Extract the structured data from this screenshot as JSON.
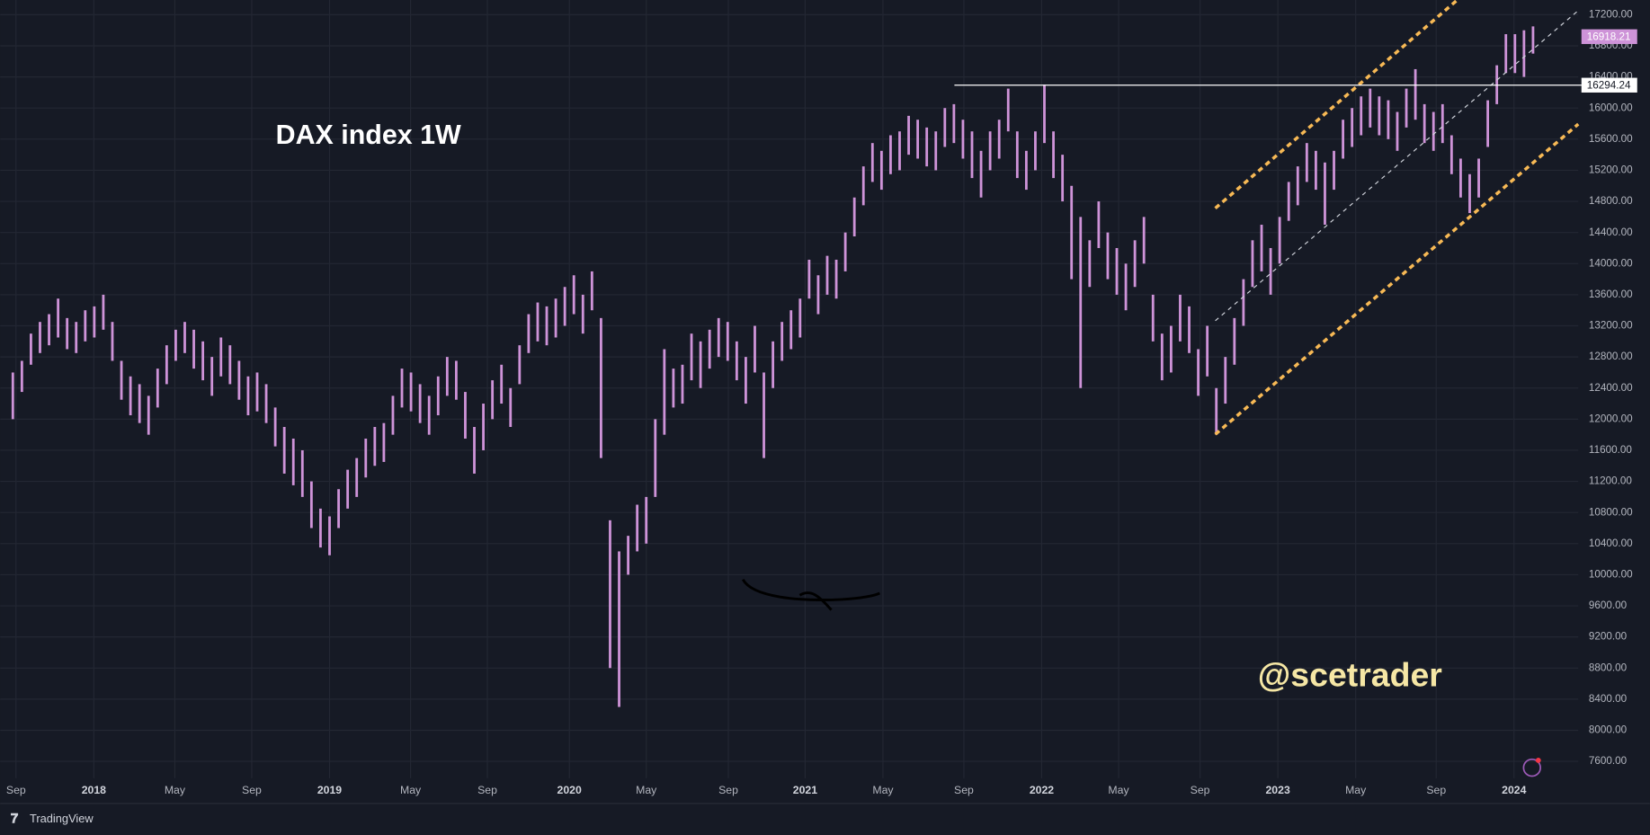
{
  "chart_data": {
    "type": "ohlc",
    "title": "DAX index 1W",
    "watermark": "@scetrader",
    "brand": "TradingView",
    "color": "#ce93d8",
    "low": [
      12000,
      12350,
      12700,
      12850,
      12950,
      13050,
      12900,
      12850,
      13000,
      13050,
      13150,
      12750,
      12250,
      12050,
      11950,
      11800,
      12150,
      12450,
      12750,
      12850,
      12650,
      12500,
      12300,
      12550,
      12450,
      12250,
      12050,
      12100,
      11950,
      11650,
      11300,
      11150,
      11000,
      10600,
      10350,
      10250,
      10600,
      10850,
      11000,
      11250,
      11400,
      11450,
      11800,
      12150,
      12100,
      11950,
      11800,
      12050,
      12300,
      12250,
      11750,
      11300,
      11600,
      12000,
      12200,
      11900,
      12450,
      12850,
      13000,
      12950,
      13050,
      13200,
      13350,
      13100,
      13400,
      11500,
      8800,
      8300,
      10000,
      10300,
      10400,
      11000,
      11800,
      12150,
      12200,
      12500,
      12400,
      12650,
      12800,
      12750,
      12500,
      12200,
      12600,
      11500,
      12400,
      12750,
      12900,
      13050,
      13550,
      13350,
      13600,
      13550,
      13900,
      14350,
      14750,
      15050,
      14950,
      15150,
      15200,
      15400,
      15350,
      15250,
      15200,
      15500,
      15550,
      15350,
      15100,
      14850,
      15200,
      15350,
      15700,
      15100,
      14950,
      15200,
      15550,
      15100,
      14800,
      13800,
      12400,
      13700,
      14200,
      13800,
      13600,
      13400,
      13700,
      14000,
      13000,
      12500,
      12600,
      13000,
      12850,
      12300,
      12550,
      11800,
      12200,
      12700,
      13200,
      13700,
      13900,
      13600,
      14000,
      14550,
      14750,
      15050,
      14950,
      14500,
      14950,
      15350,
      15500,
      15650,
      15750,
      15650,
      15600,
      15450,
      15750,
      15850,
      15550,
      15450,
      15550,
      15150,
      14850,
      14650,
      14850,
      15500,
      16050,
      16450,
      16450,
      16400,
      16700
    ],
    "high": [
      12600,
      12750,
      13100,
      13250,
      13350,
      13550,
      13300,
      13250,
      13400,
      13450,
      13600,
      13250,
      12750,
      12550,
      12450,
      12300,
      12650,
      12950,
      13150,
      13250,
      13150,
      13000,
      12800,
      13050,
      12950,
      12750,
      12550,
      12600,
      12450,
      12150,
      11900,
      11750,
      11600,
      11200,
      10850,
      10750,
      11100,
      11350,
      11500,
      11750,
      11900,
      11950,
      12300,
      12650,
      12600,
      12450,
      12300,
      12550,
      12800,
      12750,
      12350,
      11900,
      12200,
      12500,
      12700,
      12400,
      12950,
      13350,
      13500,
      13450,
      13550,
      13700,
      13850,
      13600,
      13900,
      13300,
      10700,
      10300,
      10500,
      10900,
      11000,
      12000,
      12900,
      12650,
      12700,
      13100,
      13000,
      13150,
      13300,
      13250,
      13000,
      12800,
      13200,
      12600,
      13000,
      13250,
      13400,
      13550,
      14050,
      13850,
      14100,
      14050,
      14400,
      14850,
      15250,
      15550,
      15450,
      15650,
      15700,
      15900,
      15850,
      15750,
      15700,
      16000,
      16050,
      15850,
      15700,
      15450,
      15700,
      15850,
      16250,
      15700,
      15450,
      15700,
      16300,
      15700,
      15400,
      15000,
      14600,
      14300,
      14800,
      14400,
      14200,
      14000,
      14300,
      14600,
      13600,
      13100,
      13200,
      13600,
      13450,
      12900,
      13200,
      12400,
      12800,
      13300,
      13800,
      14300,
      14500,
      14200,
      14600,
      15050,
      15250,
      15550,
      15450,
      15300,
      15450,
      15850,
      16000,
      16150,
      16250,
      16150,
      16100,
      15950,
      16250,
      16500,
      16050,
      15950,
      16050,
      15650,
      15350,
      15150,
      15350,
      16100,
      16550,
      16950,
      16950,
      17000,
      17050
    ],
    "xlim": [
      -1.4,
      173
    ],
    "xticks": [
      {
        "value": 0.35,
        "label": "Sep"
      },
      {
        "value": 8.95,
        "label": "2018"
      },
      {
        "value": 17.9,
        "label": "May"
      },
      {
        "value": 26.4,
        "label": "Sep"
      },
      {
        "value": 35,
        "label": "2019"
      },
      {
        "value": 43.95,
        "label": "May"
      },
      {
        "value": 52.44,
        "label": "Sep"
      },
      {
        "value": 61.5,
        "label": "2020"
      },
      {
        "value": 70,
        "label": "May"
      },
      {
        "value": 79.07,
        "label": "Sep"
      },
      {
        "value": 87.56,
        "label": "2021"
      },
      {
        "value": 96.16,
        "label": "May"
      },
      {
        "value": 105.1,
        "label": "Sep"
      },
      {
        "value": 113.7,
        "label": "2022"
      },
      {
        "value": 122.2,
        "label": "May"
      },
      {
        "value": 131.2,
        "label": "Sep"
      },
      {
        "value": 139.8,
        "label": "2023"
      },
      {
        "value": 148.4,
        "label": "May"
      },
      {
        "value": 157.3,
        "label": "Sep"
      },
      {
        "value": 165.9,
        "label": "2024"
      }
    ],
    "ylim": [
      7600,
      17200
    ],
    "yticks": [
      {
        "value": 7600,
        "label": "7600.00"
      },
      {
        "value": 8000,
        "label": "8000.00"
      },
      {
        "value": 8400,
        "label": "8400.00"
      },
      {
        "value": 8800,
        "label": "8800.00"
      },
      {
        "value": 9200,
        "label": "9200.00"
      },
      {
        "value": 9600,
        "label": "9600.00"
      },
      {
        "value": 10000,
        "label": "10000.00"
      },
      {
        "value": 10400,
        "label": "10400.00"
      },
      {
        "value": 10800,
        "label": "10800.00"
      },
      {
        "value": 11200,
        "label": "11200.00"
      },
      {
        "value": 11600,
        "label": "11600.00"
      },
      {
        "value": 12000,
        "label": "12000.00"
      },
      {
        "value": 12400,
        "label": "12400.00"
      },
      {
        "value": 12800,
        "label": "12800.00"
      },
      {
        "value": 13200,
        "label": "13200.00"
      },
      {
        "value": 13600,
        "label": "13600.00"
      },
      {
        "value": 14000,
        "label": "14000.00"
      },
      {
        "value": 14400,
        "label": "14400.00"
      },
      {
        "value": 14800,
        "label": "14800.00"
      },
      {
        "value": 15200,
        "label": "15200.00"
      },
      {
        "value": 15600,
        "label": "15600.00"
      },
      {
        "value": 16000,
        "label": "16000.00"
      },
      {
        "value": 16400,
        "label": "16400.00"
      },
      {
        "value": 16800,
        "label": "16800.00"
      },
      {
        "value": 17200,
        "label": "17200.00"
      }
    ],
    "grid": true,
    "last_price": {
      "value": 16918.21,
      "label": "16918.21"
    },
    "level": {
      "value": 16294.24,
      "label": "16294.24"
    }
  }
}
